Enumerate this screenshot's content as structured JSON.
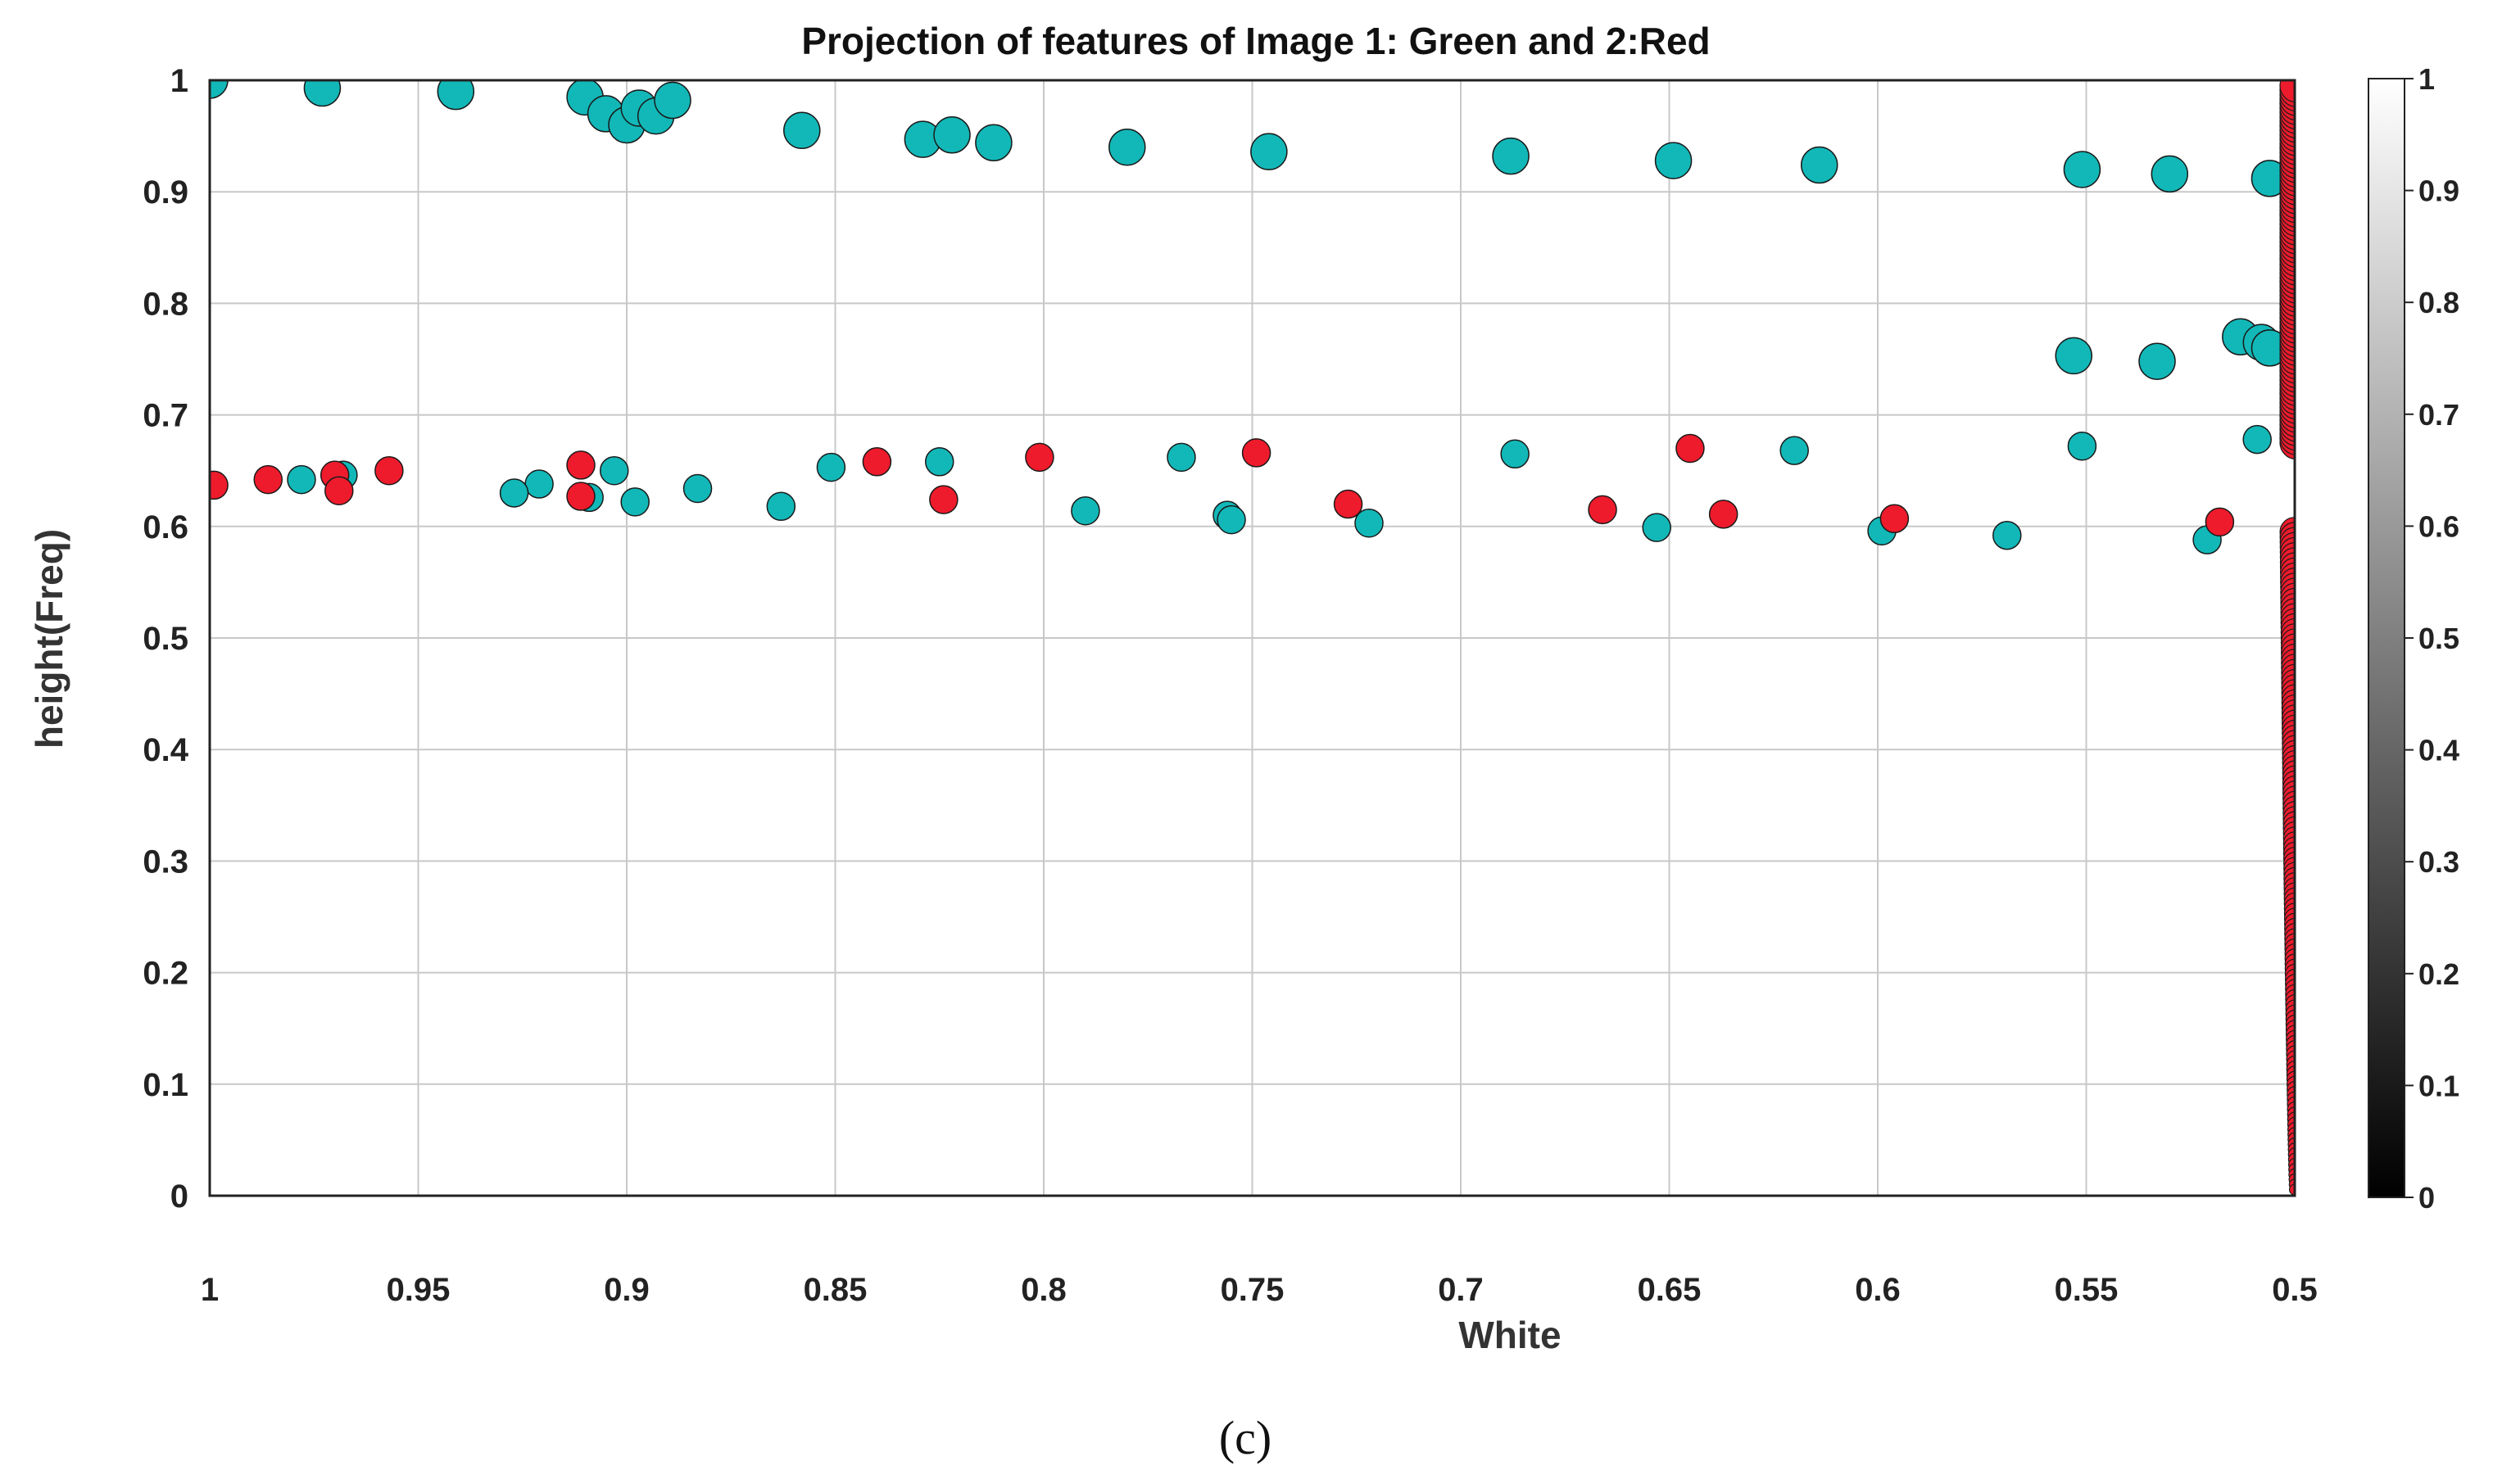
{
  "chart_data": {
    "type": "scatter",
    "title": "Projection of features of Image 1: Green and 2:Red",
    "xlabel": "White",
    "ylabel": "height(Freq)",
    "caption": "(c)",
    "xlim": [
      1,
      0.5
    ],
    "ylim": [
      0,
      1
    ],
    "x_reversed": true,
    "grid": true,
    "x_ticks": [
      "1",
      "0.95",
      "0.9",
      "0.85",
      "0.8",
      "0.75",
      "0.7",
      "0.65",
      "0.6",
      "0.55",
      "0.5"
    ],
    "y_ticks": [
      "0",
      "0.1",
      "0.2",
      "0.3",
      "0.4",
      "0.5",
      "0.6",
      "0.7",
      "0.8",
      "0.9",
      "1"
    ],
    "colorbar": {
      "range": [
        0,
        1
      ],
      "ticks": [
        "0",
        "0.1",
        "0.2",
        "0.3",
        "0.4",
        "0.5",
        "0.6",
        "0.7",
        "0.8",
        "0.9",
        "1"
      ],
      "colormap": "gray"
    },
    "series": [
      {
        "color": "#12b8b8",
        "points": [
          [
            1.0,
            1.0
          ],
          [
            0.973,
            0.993
          ],
          [
            0.941,
            0.99
          ],
          [
            0.91,
            0.985
          ],
          [
            0.905,
            0.97
          ],
          [
            0.9,
            0.96
          ],
          [
            0.897,
            0.975
          ],
          [
            0.893,
            0.968
          ],
          [
            0.889,
            0.982
          ],
          [
            0.858,
            0.955
          ],
          [
            0.829,
            0.947
          ],
          [
            0.822,
            0.951
          ],
          [
            0.812,
            0.944
          ],
          [
            0.78,
            0.94
          ],
          [
            0.746,
            0.936
          ],
          [
            0.688,
            0.932
          ],
          [
            0.649,
            0.928
          ],
          [
            0.614,
            0.924
          ],
          [
            0.551,
            0.92
          ],
          [
            0.53,
            0.916
          ],
          [
            0.506,
            0.912
          ],
          [
            0.553,
            0.753
          ],
          [
            0.533,
            0.748
          ],
          [
            0.513,
            0.77
          ],
          [
            0.508,
            0.765
          ],
          [
            0.506,
            0.76
          ],
          [
            0.509,
            0.678
          ],
          [
            0.551,
            0.672
          ],
          [
            0.62,
            0.668
          ],
          [
            0.687,
            0.665
          ],
          [
            0.767,
            0.662
          ],
          [
            0.825,
            0.658
          ],
          [
            0.851,
            0.653
          ],
          [
            0.903,
            0.65
          ],
          [
            0.968,
            0.646
          ],
          [
            0.978,
            0.642
          ],
          [
            0.921,
            0.638
          ],
          [
            0.883,
            0.634
          ],
          [
            0.927,
            0.63
          ],
          [
            0.909,
            0.626
          ],
          [
            0.898,
            0.622
          ],
          [
            0.863,
            0.618
          ],
          [
            0.79,
            0.614
          ],
          [
            0.756,
            0.61
          ],
          [
            0.755,
            0.606
          ],
          [
            0.722,
            0.603
          ],
          [
            0.653,
            0.599
          ],
          [
            0.599,
            0.596
          ],
          [
            0.569,
            0.592
          ],
          [
            0.521,
            0.588
          ]
        ]
      },
      {
        "color": "#ee1b2c",
        "points": [
          [
            0.999,
            0.637
          ],
          [
            0.986,
            0.642
          ],
          [
            0.97,
            0.646
          ],
          [
            0.957,
            0.65
          ],
          [
            0.911,
            0.655
          ],
          [
            0.969,
            0.632
          ],
          [
            0.911,
            0.627
          ],
          [
            0.84,
            0.658
          ],
          [
            0.824,
            0.624
          ],
          [
            0.801,
            0.662
          ],
          [
            0.749,
            0.666
          ],
          [
            0.727,
            0.62
          ],
          [
            0.666,
            0.615
          ],
          [
            0.645,
            0.67
          ],
          [
            0.637,
            0.611
          ],
          [
            0.596,
            0.607
          ],
          [
            0.518,
            0.604
          ]
        ]
      }
    ]
  }
}
